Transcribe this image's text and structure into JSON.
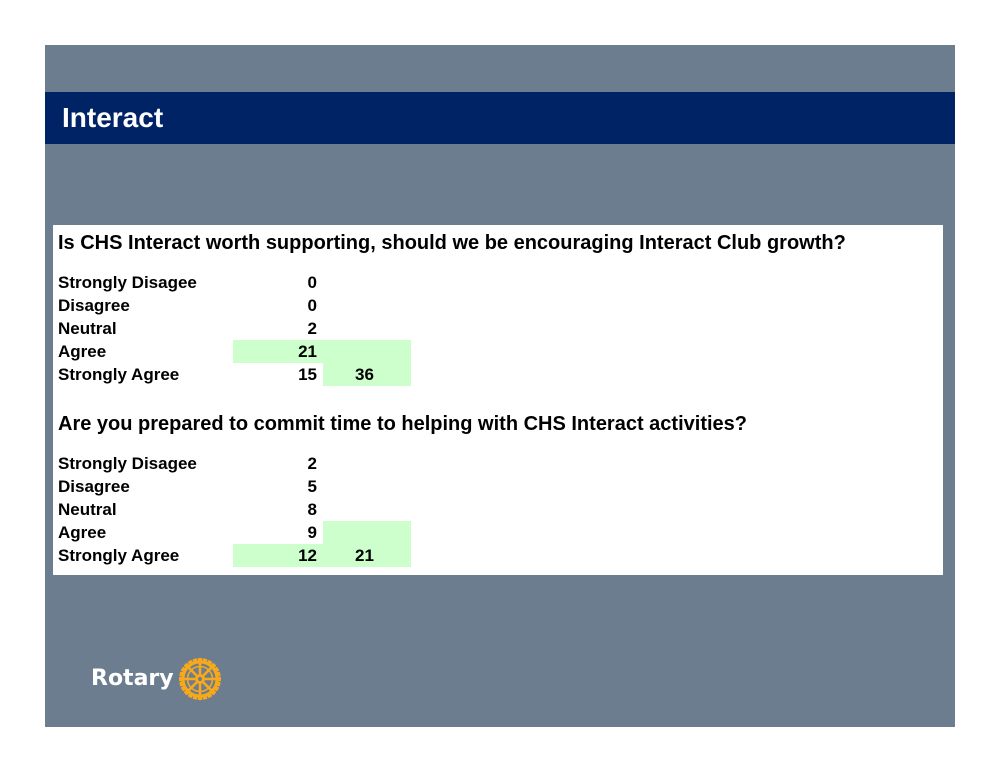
{
  "slide": {
    "title": "Interact",
    "logo_text": "Rotary",
    "logo_icon": "rotary-wheel-icon",
    "colors": {
      "background": "#6b7d8f",
      "title_bar": "#002366",
      "highlight": "#ccffcc",
      "logo_gold": "#f7a81b"
    }
  },
  "questions": [
    {
      "text": "Is CHS Interact worth supporting, should we be encouraging Interact Club growth?",
      "rows": [
        {
          "label": "Strongly Disagee",
          "count": "0",
          "sum": ""
        },
        {
          "label": "Disagree",
          "count": "0",
          "sum": ""
        },
        {
          "label": "Neutral",
          "count": "2",
          "sum": ""
        },
        {
          "label": "Agree",
          "count": "21",
          "sum": ""
        },
        {
          "label": "Strongly Agree",
          "count": "15",
          "sum": "36"
        }
      ]
    },
    {
      "text": "Are you prepared to commit time to helping with CHS Interact activities?",
      "rows": [
        {
          "label": "Strongly Disagee",
          "count": "2",
          "sum": ""
        },
        {
          "label": "Disagree",
          "count": "5",
          "sum": ""
        },
        {
          "label": "Neutral",
          "count": "8",
          "sum": ""
        },
        {
          "label": "Agree",
          "count": "9",
          "sum": ""
        },
        {
          "label": "Strongly Agree",
          "count": "12",
          "sum": "21"
        }
      ]
    }
  ]
}
